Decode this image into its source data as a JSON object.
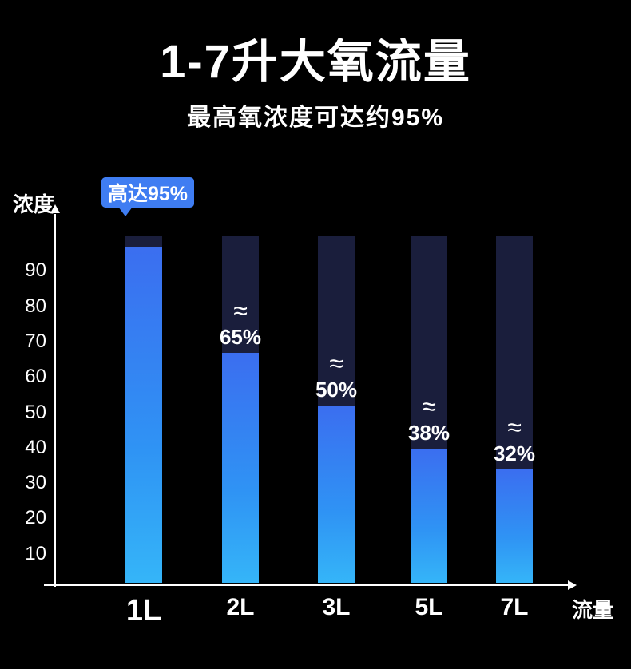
{
  "header": {
    "title": "1-7升大氧流量",
    "subtitle": "最高氧浓度可达约95%"
  },
  "chart_data": {
    "type": "bar",
    "title": "1-7升大氧流量",
    "subtitle": "最高氧浓度可达约95%",
    "categories": [
      "1L",
      "2L",
      "3L",
      "5L",
      "7L"
    ],
    "values": [
      95,
      65,
      50,
      38,
      32
    ],
    "value_labels": [
      "",
      "65%",
      "50%",
      "38%",
      "32%"
    ],
    "approx_symbol": "≈",
    "callout": "高达95%",
    "xlabel": "流量",
    "ylabel": "浓度",
    "yticks": [
      10,
      20,
      30,
      40,
      50,
      60,
      70,
      80,
      90
    ],
    "ylim": [
      0,
      100
    ],
    "grid": false,
    "legend": false,
    "colors": {
      "background": "#000000",
      "bar_track": "#1a1e3c",
      "bar_fill_top": "#3b6ef0",
      "bar_fill_bottom": "#35b5f8",
      "callout_bg": "#3f7df2",
      "text": "#ffffff"
    }
  }
}
